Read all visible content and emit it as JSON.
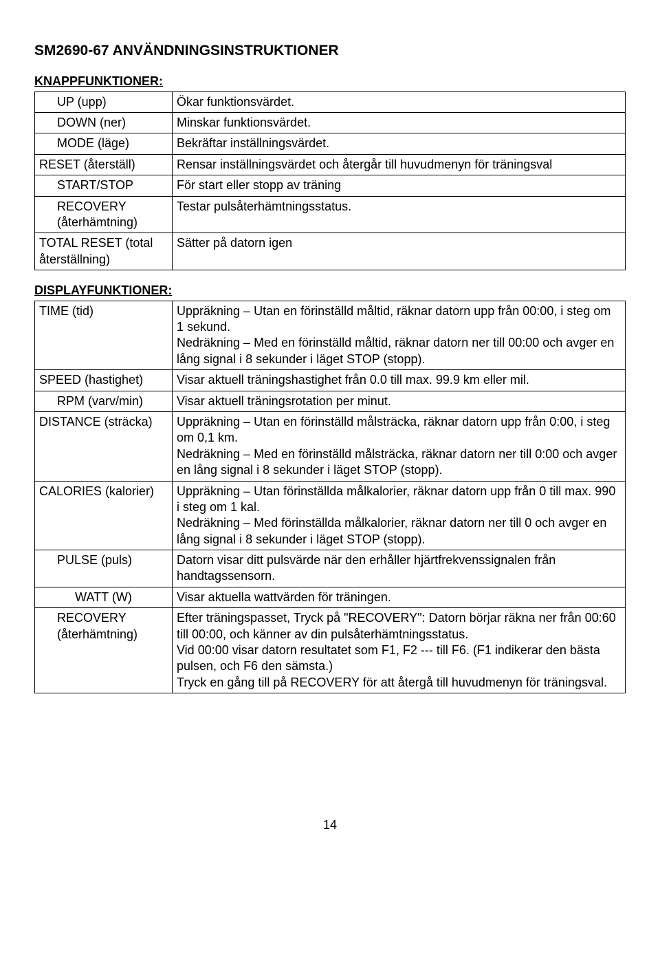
{
  "page": {
    "title": "SM2690-67 ANVÄNDNINGSINSTRUKTIONER",
    "number": "14"
  },
  "sections": {
    "knapp": {
      "heading": "KNAPPFUNKTIONER:",
      "rows": [
        {
          "label": "UP (upp)",
          "desc": "Ökar funktionsvärdet."
        },
        {
          "label": "DOWN (ner)",
          "desc": "Minskar funktionsvärdet."
        },
        {
          "label": "MODE (läge)",
          "desc": "Bekräftar inställningsvärdet."
        },
        {
          "label": "RESET (återställ)",
          "desc": "Rensar inställningsvärdet och återgår till huvudmenyn för träningsval"
        },
        {
          "label": "START/STOP",
          "desc": "För start eller stopp av träning"
        },
        {
          "label": "RECOVERY (återhämtning)",
          "desc": "Testar pulsåterhämtningsstatus."
        },
        {
          "label": "TOTAL RESET (total återställning)",
          "desc": "Sätter på datorn igen"
        }
      ]
    },
    "display": {
      "heading": "DISPLAYFUNKTIONER:",
      "rows": [
        {
          "label": "TIME (tid)",
          "desc": "Uppräkning – Utan en förinställd måltid, räknar datorn upp från 00:00, i steg om 1 sekund.\nNedräkning – Med en förinställd måltid, räknar datorn ner till 00:00 och avger en lång signal i 8 sekunder i läget STOP (stopp)."
        },
        {
          "label": "SPEED (hastighet)",
          "desc": "Visar aktuell träningshastighet från 0.0 till max. 99.9 km eller mil."
        },
        {
          "label": "RPM    (varv/min)",
          "desc": "Visar aktuell träningsrotation per minut."
        },
        {
          "label": "DISTANCE (sträcka)",
          "desc": "Uppräkning – Utan en förinställd målsträcka, räknar datorn upp från 0:00, i steg om 0,1 km.\nNedräkning – Med en förinställd målsträcka, räknar datorn ner till 0:00 och avger en lång signal i 8 sekunder i läget STOP (stopp)."
        },
        {
          "label": "CALORIES (kalorier)",
          "desc": "Uppräkning – Utan förinställda målkalorier, räknar datorn upp från 0 till max. 990 i steg om 1 kal.\nNedräkning – Med förinställda målkalorier, räknar datorn ner till 0 och avger en lång signal i 8 sekunder i läget STOP (stopp)."
        },
        {
          "label": "PULSE (puls)",
          "desc": "Datorn visar ditt pulsvärde när den erhåller hjärtfrekvenssignalen från handtagssensorn."
        },
        {
          "label": "WATT (W)",
          "desc": "Visar aktuella wattvärden för träningen."
        },
        {
          "label": "RECOVERY (återhämtning)",
          "desc": "Efter träningspasset, Tryck på \"RECOVERY\": Datorn börjar räkna ner från 00:60 till 00:00, och känner av din pulsåterhämtningsstatus.\nVid 00:00 visar datorn resultatet som F1, F2 --- till F6. (F1 indikerar den bästa pulsen, och F6 den sämsta.)\nTryck en gång till på RECOVERY för att återgå till huvudmenyn för träningsval."
        }
      ]
    }
  }
}
